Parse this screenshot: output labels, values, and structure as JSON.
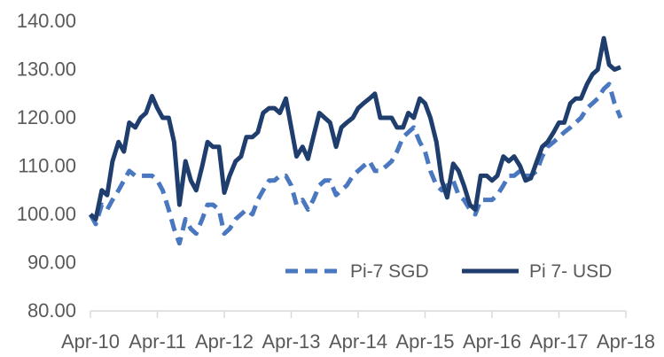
{
  "chart_data": {
    "type": "line",
    "title": "",
    "xlabel": "",
    "ylabel": "",
    "ylim": [
      80,
      140
    ],
    "yticks": [
      "80.00",
      "90.00",
      "100.00",
      "110.00",
      "120.00",
      "130.00",
      "140.00"
    ],
    "xticks": [
      "Apr-10",
      "Apr-11",
      "Apr-12",
      "Apr-13",
      "Apr-14",
      "Apr-15",
      "Apr-16",
      "Apr-17",
      "Apr-18"
    ],
    "x_unit": "years since Apr-10",
    "grid": false,
    "legend_position": "bottom-right",
    "series": [
      {
        "name": "Pi-7 SGD",
        "color": "#4a78c0",
        "style": "dashed",
        "points": [
          [
            0.0,
            100
          ],
          [
            0.08,
            98
          ],
          [
            0.17,
            102
          ],
          [
            0.25,
            101
          ],
          [
            0.33,
            103
          ],
          [
            0.42,
            105
          ],
          [
            0.5,
            107
          ],
          [
            0.58,
            109
          ],
          [
            0.67,
            108
          ],
          [
            0.75,
            108
          ],
          [
            0.83,
            108
          ],
          [
            0.92,
            108
          ],
          [
            1.0,
            107
          ],
          [
            1.08,
            105
          ],
          [
            1.17,
            101
          ],
          [
            1.25,
            97
          ],
          [
            1.33,
            94
          ],
          [
            1.42,
            99
          ],
          [
            1.5,
            97
          ],
          [
            1.58,
            96
          ],
          [
            1.67,
            99
          ],
          [
            1.75,
            102
          ],
          [
            1.83,
            102
          ],
          [
            1.92,
            101
          ],
          [
            2.0,
            96
          ],
          [
            2.08,
            97
          ],
          [
            2.17,
            99
          ],
          [
            2.25,
            100
          ],
          [
            2.33,
            101
          ],
          [
            2.42,
            100
          ],
          [
            2.5,
            103
          ],
          [
            2.58,
            105
          ],
          [
            2.67,
            107
          ],
          [
            2.75,
            107
          ],
          [
            2.83,
            108
          ],
          [
            2.92,
            108
          ],
          [
            3.0,
            106
          ],
          [
            3.08,
            102
          ],
          [
            3.17,
            103
          ],
          [
            3.25,
            101
          ],
          [
            3.33,
            103
          ],
          [
            3.42,
            106
          ],
          [
            3.5,
            107
          ],
          [
            3.58,
            107
          ],
          [
            3.67,
            104
          ],
          [
            3.75,
            105
          ],
          [
            3.83,
            106
          ],
          [
            3.92,
            108
          ],
          [
            4.0,
            109
          ],
          [
            4.08,
            110
          ],
          [
            4.17,
            111
          ],
          [
            4.25,
            109
          ],
          [
            4.33,
            109
          ],
          [
            4.42,
            110
          ],
          [
            4.5,
            111
          ],
          [
            4.58,
            113
          ],
          [
            4.67,
            116
          ],
          [
            4.75,
            117
          ],
          [
            4.83,
            118
          ],
          [
            4.92,
            115
          ],
          [
            5.0,
            113
          ],
          [
            5.08,
            109
          ],
          [
            5.17,
            106
          ],
          [
            5.25,
            105
          ],
          [
            5.33,
            106
          ],
          [
            5.42,
            107
          ],
          [
            5.5,
            104
          ],
          [
            5.58,
            103
          ],
          [
            5.67,
            101
          ],
          [
            5.75,
            100
          ],
          [
            5.83,
            103
          ],
          [
            5.92,
            103
          ],
          [
            6.0,
            103
          ],
          [
            6.08,
            104
          ],
          [
            6.17,
            106
          ],
          [
            6.25,
            108
          ],
          [
            6.33,
            108
          ],
          [
            6.42,
            109
          ],
          [
            6.5,
            108
          ],
          [
            6.58,
            108
          ],
          [
            6.67,
            109
          ],
          [
            6.75,
            112
          ],
          [
            6.83,
            114
          ],
          [
            6.92,
            115
          ],
          [
            7.0,
            116
          ],
          [
            7.08,
            117
          ],
          [
            7.17,
            118
          ],
          [
            7.25,
            119
          ],
          [
            7.33,
            120
          ],
          [
            7.42,
            122
          ],
          [
            7.5,
            123
          ],
          [
            7.58,
            124
          ],
          [
            7.67,
            126
          ],
          [
            7.75,
            127
          ],
          [
            7.83,
            123
          ],
          [
            7.92,
            120
          ]
        ]
      },
      {
        "name": "Pi 7- USD",
        "color": "#1f3e6e",
        "style": "solid",
        "points": [
          [
            0.0,
            100
          ],
          [
            0.08,
            99
          ],
          [
            0.17,
            105
          ],
          [
            0.25,
            104
          ],
          [
            0.33,
            111
          ],
          [
            0.42,
            115
          ],
          [
            0.5,
            113
          ],
          [
            0.58,
            119
          ],
          [
            0.67,
            118
          ],
          [
            0.75,
            120
          ],
          [
            0.83,
            121
          ],
          [
            0.92,
            124.5
          ],
          [
            1.0,
            122
          ],
          [
            1.08,
            120
          ],
          [
            1.17,
            120
          ],
          [
            1.25,
            115
          ],
          [
            1.33,
            102
          ],
          [
            1.42,
            111
          ],
          [
            1.5,
            107
          ],
          [
            1.58,
            105
          ],
          [
            1.67,
            110
          ],
          [
            1.75,
            115
          ],
          [
            1.83,
            114
          ],
          [
            1.92,
            114
          ],
          [
            2.0,
            104.5
          ],
          [
            2.08,
            108
          ],
          [
            2.17,
            111
          ],
          [
            2.25,
            112
          ],
          [
            2.33,
            116
          ],
          [
            2.42,
            116
          ],
          [
            2.5,
            117
          ],
          [
            2.58,
            121
          ],
          [
            2.67,
            122
          ],
          [
            2.75,
            122
          ],
          [
            2.83,
            121
          ],
          [
            2.92,
            124
          ],
          [
            3.0,
            118
          ],
          [
            3.08,
            112
          ],
          [
            3.17,
            114
          ],
          [
            3.25,
            111.5
          ],
          [
            3.33,
            116
          ],
          [
            3.42,
            121
          ],
          [
            3.5,
            120
          ],
          [
            3.58,
            119
          ],
          [
            3.67,
            114
          ],
          [
            3.75,
            118
          ],
          [
            3.83,
            119
          ],
          [
            3.92,
            120
          ],
          [
            4.0,
            122
          ],
          [
            4.08,
            123
          ],
          [
            4.17,
            124
          ],
          [
            4.25,
            125
          ],
          [
            4.33,
            120
          ],
          [
            4.42,
            120
          ],
          [
            4.5,
            120
          ],
          [
            4.58,
            118
          ],
          [
            4.67,
            118
          ],
          [
            4.75,
            121
          ],
          [
            4.83,
            120
          ],
          [
            4.92,
            124
          ],
          [
            5.0,
            123
          ],
          [
            5.08,
            120
          ],
          [
            5.17,
            115
          ],
          [
            5.25,
            107
          ],
          [
            5.33,
            103.5
          ],
          [
            5.42,
            110.5
          ],
          [
            5.5,
            109
          ],
          [
            5.58,
            106
          ],
          [
            5.67,
            102
          ],
          [
            5.75,
            101
          ],
          [
            5.83,
            108
          ],
          [
            5.92,
            108
          ],
          [
            6.0,
            107
          ],
          [
            6.08,
            108
          ],
          [
            6.17,
            112
          ],
          [
            6.25,
            111
          ],
          [
            6.33,
            112
          ],
          [
            6.42,
            110
          ],
          [
            6.5,
            107
          ],
          [
            6.58,
            107.5
          ],
          [
            6.67,
            111
          ],
          [
            6.75,
            114
          ],
          [
            6.83,
            115
          ],
          [
            6.92,
            117
          ],
          [
            7.0,
            119
          ],
          [
            7.08,
            119
          ],
          [
            7.17,
            123
          ],
          [
            7.25,
            124
          ],
          [
            7.33,
            124
          ],
          [
            7.42,
            127
          ],
          [
            7.5,
            129
          ],
          [
            7.58,
            130
          ],
          [
            7.67,
            136.5
          ],
          [
            7.75,
            131
          ],
          [
            7.83,
            130
          ],
          [
            7.92,
            130.5
          ]
        ]
      }
    ]
  }
}
